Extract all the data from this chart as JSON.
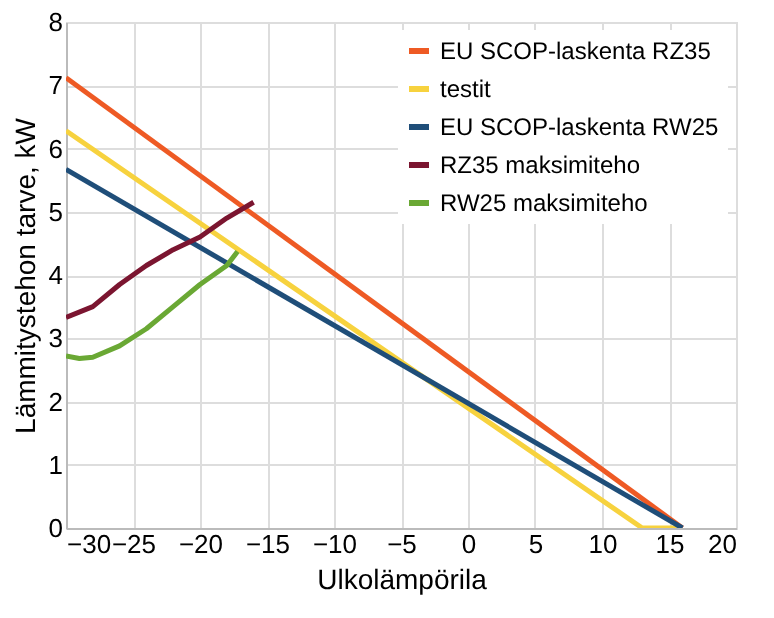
{
  "chart_data": {
    "type": "line",
    "xlabel": "Ulkolämpörila",
    "ylabel": "Lämmitystehon tarve, kW",
    "xlim": [
      -30,
      20
    ],
    "xticks": [
      -30,
      -25,
      -20,
      -15,
      -10,
      -5,
      0,
      5,
      10,
      15,
      20
    ],
    "ylim": [
      0,
      8
    ],
    "yticks": [
      0,
      1,
      2,
      3,
      4,
      5,
      6,
      7,
      8
    ],
    "grid": true,
    "legend": "top right",
    "marker": "none",
    "line_style": "solid",
    "series": [
      {
        "name": "EU SCOP-laskenta RZ35",
        "color": "#ee5a24",
        "x": [
          -30,
          16
        ],
        "values": [
          7.12,
          0
        ]
      },
      {
        "name": "testit",
        "color": "#f7d23e",
        "x": [
          -30,
          13,
          16
        ],
        "values": [
          6.28,
          0,
          0
        ]
      },
      {
        "name": "EU SCOP-laskenta RW25",
        "color": "#1f4e79",
        "x": [
          -30,
          16
        ],
        "values": [
          5.67,
          0
        ]
      },
      {
        "name": "RZ35 maksimiteho",
        "color": "#7b1530",
        "x": [
          -30,
          -28,
          -26,
          -24,
          -22,
          -20,
          -18,
          -16
        ],
        "values": [
          3.33,
          3.5,
          3.85,
          4.15,
          4.4,
          4.6,
          4.9,
          5.15
        ]
      },
      {
        "name": "RW25 maksimiteho",
        "color": "#6aa834",
        "x": [
          -30,
          -29,
          -28,
          -26,
          -24,
          -22,
          -20,
          -18,
          -17.2
        ],
        "values": [
          2.72,
          2.68,
          2.7,
          2.88,
          3.15,
          3.5,
          3.85,
          4.15,
          4.37
        ]
      }
    ]
  }
}
